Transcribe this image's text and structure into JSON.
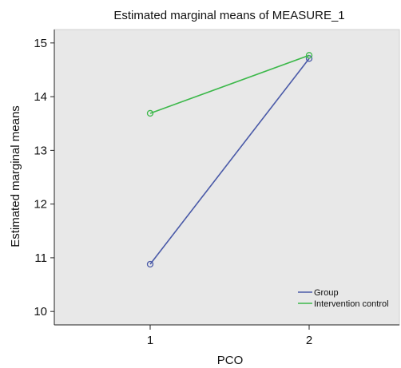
{
  "chart_data": {
    "type": "line",
    "title": "Estimated marginal means of MEASURE_1",
    "xlabel": "PCO",
    "ylabel": "Estimated marginal means",
    "categories": [
      "1",
      "2"
    ],
    "ylim": [
      9.75,
      15.25
    ],
    "yticks": [
      10,
      11,
      12,
      13,
      14,
      15
    ],
    "grid": false,
    "legend_position": "bottom-right",
    "plot_background": "#e8e8e8",
    "series": [
      {
        "name": "Group",
        "values": [
          10.88,
          14.71
        ],
        "color": "#4a5aa8"
      },
      {
        "name": "Intervention control",
        "values": [
          13.69,
          14.77
        ],
        "color": "#3cb84a"
      }
    ]
  }
}
